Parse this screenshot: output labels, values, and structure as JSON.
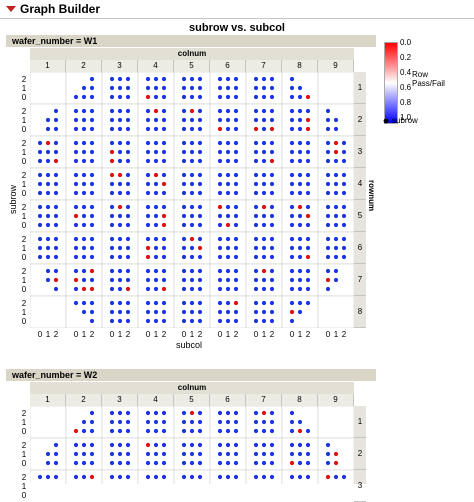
{
  "window": {
    "title": "Graph Builder"
  },
  "chart_data": {
    "type": "scatter",
    "title": "subrow vs. subcol",
    "xlabel": "subcol",
    "ylabel": "subrow",
    "facet_col_label": "colnum",
    "facet_row_label": "rownum",
    "col_facets": [
      "1",
      "2",
      "3",
      "4",
      "5",
      "6",
      "7",
      "8",
      "9"
    ],
    "row_facets": [
      "1",
      "2",
      "3",
      "4",
      "5",
      "6",
      "7",
      "8"
    ],
    "x_ticks": [
      "0",
      "1",
      "2"
    ],
    "y_ticks": [
      "2",
      "1",
      "0"
    ],
    "color_scale": {
      "name": "Row Pass/Fail",
      "min": 0.0,
      "max": 1.0,
      "ticks": [
        "0.0",
        "0.2",
        "0.4",
        "0.6",
        "0.8",
        "1.0"
      ],
      "low_color": "#ff0000",
      "mid_color": "#ffffff",
      "high_color": "#0000ff"
    },
    "marker_legend": "subrow",
    "panels": [
      {
        "label": "wafer_number = W1"
      },
      {
        "label": "wafer_number = W2"
      }
    ]
  }
}
